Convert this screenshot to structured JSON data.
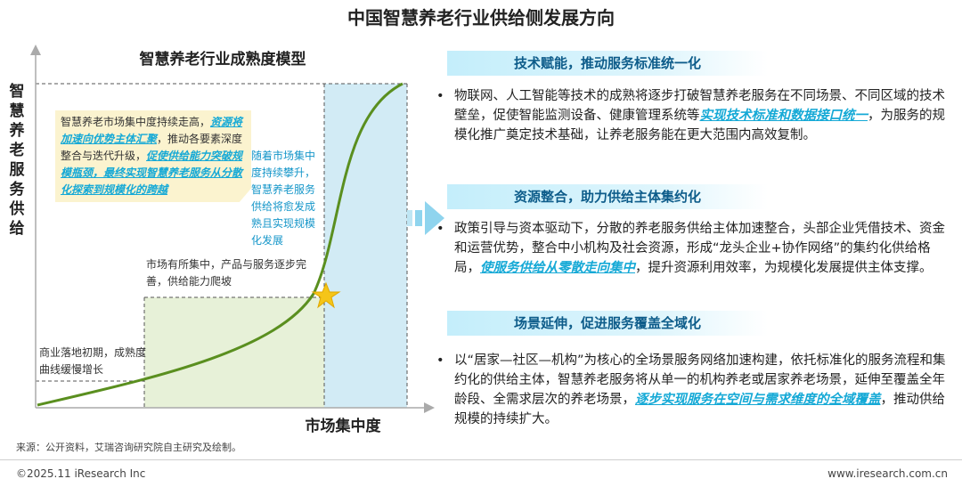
{
  "title": "中国智慧养老行业供给侧发展方向",
  "chart": {
    "title": "智慧养老行业成熟度模型",
    "y_axis_label": "智慧养老服务供给",
    "x_axis_label": "市场集中度",
    "callout_top": {
      "p1": "智慧养老市场集中度持续走高，",
      "p1_hl": "资源将加速向优势主体汇聚",
      "p2": "，推动各要素深度整合与迭代升级，",
      "p2_hl": "促使供给能力突破规模瓶颈，最终实现智慧养老服务从分散化探索到规模化的跨越"
    },
    "callout_right": "随着市场集中度持续攀升，智慧养老服务供给将愈发成熟且实现规模化发展",
    "callout_mid": "市场有所集中，产品与服务逐步完善，供给能力爬坡",
    "callout_low": "商业落地初期，成熟度曲线缓慢增长",
    "colors": {
      "curve": "#5a8f1f",
      "blue_zone": "#d2ebf5",
      "green_zone": "#e7f1d8",
      "star": "#f5c518"
    }
  },
  "sections": [
    {
      "heading": "技术赋能，推动服务标准统一化",
      "t1": "物联网、人工智能等技术的成熟将逐步打破智慧养老服务在不同场景、不同区域的技术壁垒，促使智能监测设备、健康管理系统等",
      "hl": "实现技术标准和数据接口统一",
      "t2": "，为服务的规模化推广奠定技术基础，让养老服务能在更大范围内高效复制。"
    },
    {
      "heading": "资源整合，助力供给主体集约化",
      "t1": "政策引导与资本驱动下，分散的养老服务供给主体加速整合，头部企业凭借技术、资金和运营优势，整合中小机构及社会资源，形成“龙头企业+协作网络”的集约化供给格局，",
      "hl": "使服务供给从零散走向集中",
      "t2": "，提升资源利用效率，为规模化发展提供主体支撑。"
    },
    {
      "heading": "场景延伸，促进服务覆盖全域化",
      "t1": "以“居家—社区—机构”为核心的全场景服务网络加速构建，依托标准化的服务流程和集约化的供给主体，智慧养老服务将从单一的机构养老或居家养老场景，延伸至覆盖全年龄段、全需求层次的养老场景，",
      "hl": "逐步实现服务在空间与需求维度的全域覆盖",
      "t2": "，推动供给规模的持续扩大。"
    }
  ],
  "bullet": "•",
  "source": "来源：公开资料，艾瑞咨询研究院自主研究及绘制。",
  "copyright": "©2025.11 iResearch Inc",
  "website": "www.iresearch.com.cn"
}
